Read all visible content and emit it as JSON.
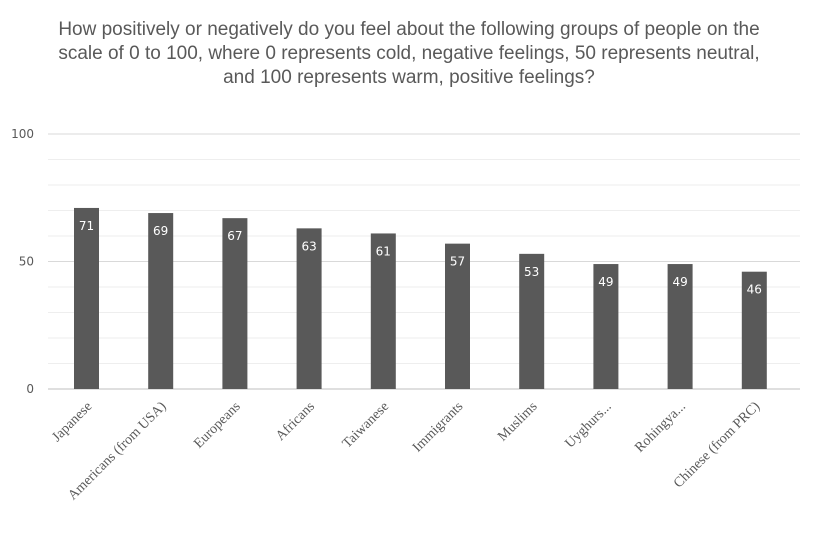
{
  "chart_data": {
    "type": "bar",
    "title": "How positively or negatively do you feel about the following groups of people on the scale of 0 to 100, where 0 represents cold, negative feelings, 50 represents neutral, and 100 represents warm, positive feelings?",
    "categories": [
      "Japanese",
      "Americans (from USA)",
      "Europeans",
      "Africans",
      "Taiwanese",
      "Immigrants",
      "Muslims",
      "Uyghurs...",
      "Rohingya...",
      "Chinese (from PRC)"
    ],
    "values": [
      71,
      69,
      67,
      63,
      61,
      57,
      53,
      49,
      49,
      46
    ],
    "yticks": [
      0,
      50,
      100
    ],
    "ylim": [
      0,
      100
    ],
    "xlabel": "",
    "ylabel": "",
    "grid": true,
    "bar_color": "#595959"
  }
}
